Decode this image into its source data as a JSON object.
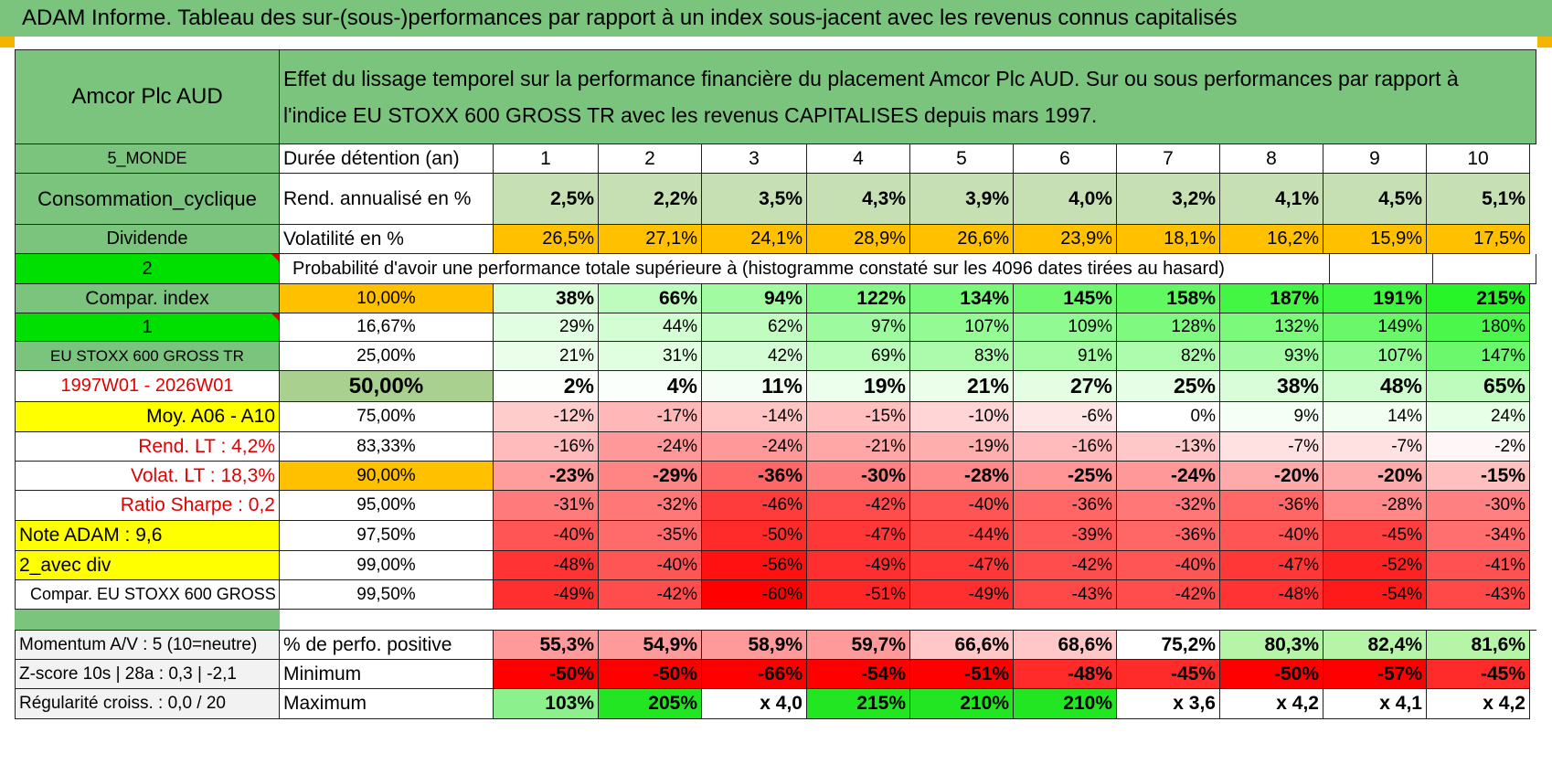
{
  "report_title": "ADAM Informe. Tableau des sur-(sous-)performances par rapport à un index sous-jacent avec les revenus connus capitalisés",
  "header": {
    "asset_name": "Amcor Plc AUD",
    "description_line1": "Effet du lissage temporel sur la performance financière du placement Amcor Plc AUD. Sur ou sous performances par rapport à",
    "description_line2": "l'indice EU STOXX 600 GROSS TR avec les revenus CAPITALISES depuis mars 1997."
  },
  "left_labels": {
    "region": "5_MONDE",
    "sector": "Consommation_cyclique",
    "dividend": "Dividende",
    "num_2": "2",
    "compar_index": "Compar. index",
    "num_1": "1",
    "index_name": "EU STOXX 600 GROSS TR",
    "period": "1997W01 - 2026W01",
    "moy": "Moy. A06 - A10",
    "rend_lt": "Rend. LT :    4,2%",
    "volat_lt": "Volat. LT :    18,3%",
    "ratio_sharpe": "Ratio Sharpe :     0,2",
    "note_adam": "Note ADAM : 9,6",
    "avec_div": "2_avec div",
    "compar_full": "Compar. EU STOXX 600 GROSS TR",
    "momentum": "Momentum A/V : 5 (10=neutre)",
    "zscore": "Z-score 10s | 28a : 0,3 | -2,1",
    "regularite": "Régularité croiss. : 0,0 / 20"
  },
  "rows_labels": {
    "duree": "Durée détention (an)",
    "rend": "Rend. annualisé en %",
    "vol": "Volatilité en %",
    "proba": "Probabilité d'avoir une performance totale supérieure à (histogramme constaté sur les 4096 dates tirées au hasard)",
    "pct_pos": "% de perfo. positive",
    "minimum": "Minimum",
    "maximum": "Maximum"
  },
  "years": [
    "1",
    "2",
    "3",
    "4",
    "5",
    "6",
    "7",
    "8",
    "9",
    "10"
  ],
  "rend_values": [
    "2,5%",
    "2,2%",
    "3,5%",
    "4,3%",
    "3,9%",
    "4,0%",
    "3,2%",
    "4,1%",
    "4,5%",
    "5,1%"
  ],
  "vol_values": [
    "26,5%",
    "27,1%",
    "24,1%",
    "28,9%",
    "26,6%",
    "23,9%",
    "18,1%",
    "16,2%",
    "15,9%",
    "17,5%"
  ],
  "percentile_rows": [
    {
      "p": "10,00%",
      "v": [
        "38%",
        "66%",
        "94%",
        "122%",
        "134%",
        "145%",
        "158%",
        "187%",
        "191%",
        "215%"
      ]
    },
    {
      "p": "16,67%",
      "v": [
        "29%",
        "44%",
        "62%",
        "97%",
        "107%",
        "109%",
        "128%",
        "132%",
        "149%",
        "180%"
      ]
    },
    {
      "p": "25,00%",
      "v": [
        "21%",
        "31%",
        "42%",
        "69%",
        "83%",
        "91%",
        "82%",
        "93%",
        "107%",
        "147%"
      ]
    },
    {
      "p": "50,00%",
      "v": [
        "2%",
        "4%",
        "11%",
        "19%",
        "21%",
        "27%",
        "25%",
        "38%",
        "48%",
        "65%"
      ]
    },
    {
      "p": "75,00%",
      "v": [
        "-12%",
        "-17%",
        "-14%",
        "-15%",
        "-10%",
        "-6%",
        "0%",
        "9%",
        "14%",
        "24%"
      ]
    },
    {
      "p": "83,33%",
      "v": [
        "-16%",
        "-24%",
        "-24%",
        "-21%",
        "-19%",
        "-16%",
        "-13%",
        "-7%",
        "-7%",
        "-2%"
      ]
    },
    {
      "p": "90,00%",
      "v": [
        "-23%",
        "-29%",
        "-36%",
        "-30%",
        "-28%",
        "-25%",
        "-24%",
        "-20%",
        "-20%",
        "-15%"
      ]
    },
    {
      "p": "95,00%",
      "v": [
        "-31%",
        "-32%",
        "-46%",
        "-42%",
        "-40%",
        "-36%",
        "-32%",
        "-36%",
        "-28%",
        "-30%"
      ]
    },
    {
      "p": "97,50%",
      "v": [
        "-40%",
        "-35%",
        "-50%",
        "-47%",
        "-44%",
        "-39%",
        "-36%",
        "-40%",
        "-45%",
        "-34%"
      ]
    },
    {
      "p": "99,00%",
      "v": [
        "-48%",
        "-40%",
        "-56%",
        "-49%",
        "-47%",
        "-42%",
        "-40%",
        "-47%",
        "-52%",
        "-41%"
      ]
    },
    {
      "p": "99,50%",
      "v": [
        "-49%",
        "-42%",
        "-60%",
        "-51%",
        "-49%",
        "-43%",
        "-42%",
        "-48%",
        "-54%",
        "-43%"
      ]
    }
  ],
  "pct_pos_values": [
    "55,3%",
    "54,9%",
    "58,9%",
    "59,7%",
    "66,6%",
    "68,6%",
    "75,2%",
    "80,3%",
    "82,4%",
    "81,6%"
  ],
  "min_values": [
    "-50%",
    "-50%",
    "-66%",
    "-54%",
    "-51%",
    "-48%",
    "-45%",
    "-50%",
    "-57%",
    "-45%"
  ],
  "max_values": [
    "103%",
    "205%",
    "x 4,0",
    "215%",
    "210%",
    "210%",
    "x 3,6",
    "x 4,2",
    "x 4,1",
    "x 4,2"
  ],
  "colors": {
    "header_green": "#7ac47d",
    "light_green": "#c6e0b4",
    "bright_green": "#00e000",
    "orange": "#ffc000",
    "yellow": "#ffff00",
    "red_text": "#e00000",
    "strong_red": "#ff0000"
  }
}
